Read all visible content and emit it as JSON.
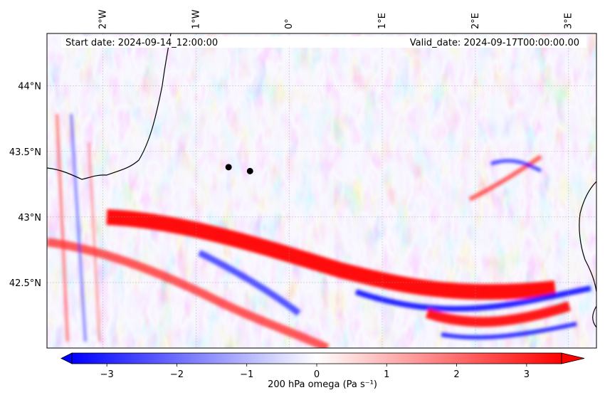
{
  "header": {
    "start_date": "Start date: 2024-09-14_12:00:00",
    "valid_date": "Valid_date: 2024-09-17T00:00:00.00"
  },
  "axes": {
    "lon_labels": [
      {
        "lon": -2,
        "text": "2°W"
      },
      {
        "lon": -1,
        "text": "1°W"
      },
      {
        "lon": 0,
        "text": "0°"
      },
      {
        "lon": 1,
        "text": "1°E"
      },
      {
        "lon": 2,
        "text": "2°E"
      },
      {
        "lon": 3,
        "text": "3°E"
      }
    ],
    "lat_labels": [
      {
        "lat": 44.0,
        "text": "44°N"
      },
      {
        "lat": 43.5,
        "text": "43.5°N"
      },
      {
        "lat": 43.0,
        "text": "43°N"
      },
      {
        "lat": 42.5,
        "text": "42.5°N"
      }
    ],
    "lon_range": [
      -2.6,
      3.3
    ],
    "lat_range": [
      42.0,
      44.4
    ],
    "gridlines": true
  },
  "markers": [
    {
      "name": "point-1",
      "lon": -0.65,
      "lat": 43.38
    },
    {
      "name": "point-2",
      "lon": -0.42,
      "lat": 43.35
    }
  ],
  "colorbar": {
    "label": "200 hPa omega (Pa s⁻¹)",
    "min": -3.5,
    "max": 3.5,
    "ticks": [
      -3,
      -2,
      -1,
      0,
      1,
      2,
      3
    ],
    "extend": "both",
    "colormap": [
      "#0000ff",
      "#ffffff",
      "#ff0000"
    ]
  }
}
